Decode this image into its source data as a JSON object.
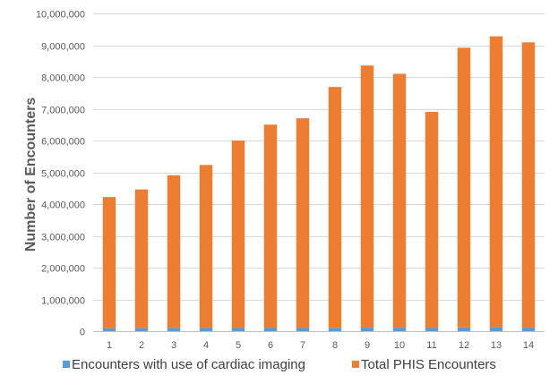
{
  "chart_data": {
    "type": "bar",
    "stacked": true,
    "title": "",
    "xlabel": "",
    "ylabel": "Number of Encounters",
    "ylim": [
      0,
      10000000
    ],
    "y_ticks": [
      0,
      1000000,
      2000000,
      3000000,
      4000000,
      5000000,
      6000000,
      7000000,
      8000000,
      9000000,
      10000000
    ],
    "y_tick_labels": [
      "0",
      "1,000,000",
      "2,000,000",
      "3,000,000",
      "4,000,000",
      "5,000,000",
      "6,000,000",
      "7,000,000",
      "8,000,000",
      "9,000,000",
      "10,000,000"
    ],
    "categories": [
      "1",
      "2",
      "3",
      "4",
      "5",
      "6",
      "7",
      "8",
      "9",
      "10",
      "11",
      "12",
      "13",
      "14"
    ],
    "series": [
      {
        "name": "Encounters with use of cardiac imaging",
        "color": "#5B9BD5",
        "values": [
          90000,
          90000,
          95000,
          100000,
          100000,
          100000,
          100000,
          105000,
          110000,
          110000,
          100000,
          120000,
          130000,
          110000
        ]
      },
      {
        "name": "Total PHIS Encounters",
        "color": "#ED7D31",
        "values": [
          4130000,
          4370000,
          4810000,
          5130000,
          5900000,
          6400000,
          6600000,
          7580000,
          8250000,
          7990000,
          6800000,
          8800000,
          9150000,
          8980000
        ]
      }
    ],
    "grid": true,
    "legend_position": "bottom"
  }
}
